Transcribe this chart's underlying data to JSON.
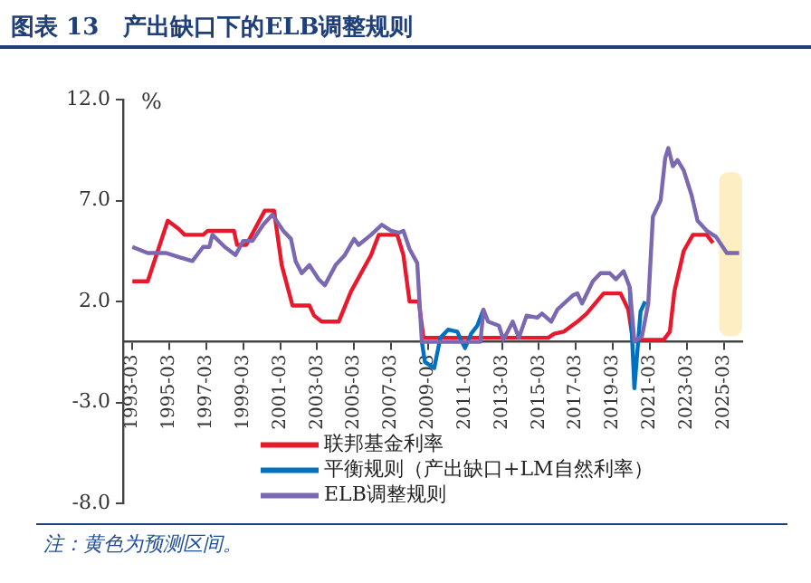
{
  "chart_data": {
    "type": "line",
    "title": "图表 13   产出缺口下的ELB调整规则",
    "ylabel": "%",
    "xlim": [
      "1992-09",
      "2026-03"
    ],
    "xticks": [
      "1993-03",
      "1995-03",
      "1997-03",
      "1999-03",
      "2001-03",
      "2003-03",
      "2005-03",
      "2007-03",
      "2009-03",
      "2011-03",
      "2013-03",
      "2015-03",
      "2017-03",
      "2019-03",
      "2021-03",
      "2023-03",
      "2025-03"
    ],
    "ylim": [
      -8,
      12
    ],
    "yticks": [
      {
        "value": 12,
        "label": "12.0"
      },
      {
        "value": 7,
        "label": "7.0"
      },
      {
        "value": 2,
        "label": "2.0"
      },
      {
        "value": -3,
        "label": "-3.0"
      },
      {
        "value": -8,
        "label": "-8.0"
      }
    ],
    "bands": [
      {
        "axis": "x",
        "from": "2024-12",
        "to": "2026-03",
        "color": "#fdeec4"
      }
    ],
    "legend": "bottom",
    "series": [
      {
        "name": "联邦基金利率",
        "color": "#e8192c",
        "x": [
          "1993-03",
          "1994-01",
          "1995-02",
          "1995-09",
          "1996-01",
          "1997-01",
          "1997-04",
          "1998-09",
          "1998-11",
          "1999-05",
          "2000-05",
          "2000-11",
          "2001-04",
          "2001-11",
          "2002-10",
          "2003-01",
          "2003-06",
          "2004-05",
          "2005-01",
          "2006-02",
          "2006-07",
          "2007-07",
          "2007-11",
          "2008-03",
          "2008-09",
          "2008-12",
          "2015-09",
          "2016-01",
          "2016-07",
          "2017-04",
          "2017-10",
          "2018-09",
          "2019-08",
          "2020-01",
          "2020-04",
          "2021-12",
          "2022-04",
          "2022-07",
          "2023-01",
          "2023-07",
          "2024-04",
          "2024-08"
        ],
        "values": [
          3.0,
          3.0,
          6.0,
          5.6,
          5.3,
          5.3,
          5.5,
          5.5,
          4.8,
          4.8,
          6.5,
          6.5,
          3.8,
          1.8,
          1.8,
          1.3,
          1.0,
          1.0,
          2.5,
          4.3,
          5.3,
          5.3,
          4.3,
          2.0,
          2.0,
          0.2,
          0.2,
          0.4,
          0.5,
          1.0,
          1.4,
          2.4,
          2.4,
          1.6,
          0.1,
          0.1,
          0.5,
          2.5,
          4.5,
          5.3,
          5.3,
          4.9
        ]
      },
      {
        "name": "平衡规则（产出缺口+LM自然利率）",
        "color": "#0070c0",
        "x": [
          "2008-11",
          "2009-01",
          "2009-07",
          "2009-11",
          "2010-04",
          "2010-10",
          "2011-01",
          "2011-03",
          "2011-07",
          "2011-11",
          "2012-03",
          "2016-01",
          "2020-02",
          "2020-05",
          "2020-09",
          "2020-12"
        ],
        "values": [
          0,
          -1.0,
          -1.3,
          0.2,
          0.6,
          0.5,
          0,
          -0.3,
          0.4,
          0.8,
          1.6,
          null,
          2.7,
          -2.3,
          1.5,
          2.0
        ]
      },
      {
        "name": "ELB调整规则",
        "color": "#7b68b0",
        "x": [
          "1993-03",
          "1994-01",
          "1995-01",
          "1995-09",
          "1996-06",
          "1997-01",
          "1997-05",
          "1997-07",
          "1998-03",
          "1998-10",
          "1999-03",
          "1999-09",
          "2000-04",
          "2000-10",
          "2001-05",
          "2001-10",
          "2002-01",
          "2002-05",
          "2002-10",
          "2003-04",
          "2003-08",
          "2004-03",
          "2004-09",
          "2005-03",
          "2005-06",
          "2006-02",
          "2006-09",
          "2007-03",
          "2007-08",
          "2007-11",
          "2008-03",
          "2008-08",
          "2008-11",
          "2012-01",
          "2012-03",
          "2012-06",
          "2013-01",
          "2013-04",
          "2013-10",
          "2014-02",
          "2014-07",
          "2015-02",
          "2015-05",
          "2015-11",
          "2016-03",
          "2017-01",
          "2017-04",
          "2017-07",
          "2018-02",
          "2018-07",
          "2019-01",
          "2019-05",
          "2019-10",
          "2020-02",
          "2020-05",
          "2020-10",
          "2021-02",
          "2021-05",
          "2021-10",
          "2022-01",
          "2022-03",
          "2022-06",
          "2022-09",
          "2023-01",
          "2023-06",
          "2023-10",
          "2024-04",
          "2024-10",
          "2025-05",
          "2026-01"
        ],
        "values": [
          4.7,
          4.4,
          4.4,
          4.2,
          4.0,
          4.7,
          4.7,
          5.3,
          4.7,
          4.3,
          5.0,
          5.0,
          5.8,
          6.3,
          5.5,
          5.1,
          4.0,
          3.4,
          3.8,
          3.1,
          2.8,
          3.8,
          4.3,
          5.1,
          4.8,
          5.3,
          5.8,
          5.5,
          5.4,
          5.5,
          4.6,
          3.9,
          0,
          0,
          1.6,
          1.0,
          0.8,
          0.1,
          1.0,
          0.2,
          1.3,
          1.2,
          1.4,
          1.0,
          1.6,
          2.3,
          2.4,
          1.9,
          3.0,
          3.4,
          3.4,
          3.1,
          3.5,
          2.7,
          0,
          0.3,
          1.9,
          6.2,
          7.0,
          9.1,
          9.6,
          8.7,
          9.0,
          8.5,
          7.3,
          6.0,
          5.5,
          5.2,
          4.4,
          4.4
        ]
      }
    ],
    "annotations": [
      "注：黄色为预测区间。"
    ]
  }
}
